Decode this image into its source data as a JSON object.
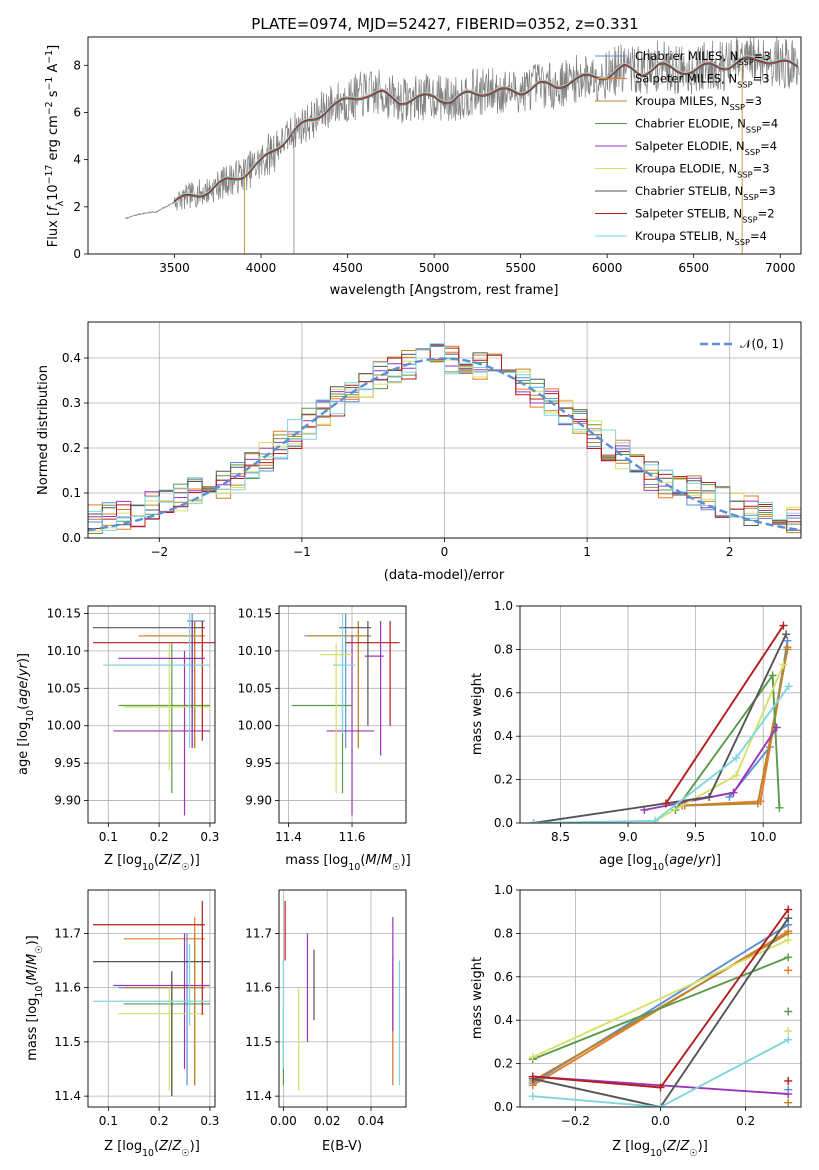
{
  "figure_title": "PLATE=0974, MJD=52427, FIBERID=0352, z=0.331",
  "colors": {
    "chabrier_miles": "#5b8fd6",
    "salpeter_miles": "#e97a2b",
    "kroupa_miles": "#b8862a",
    "chabrier_elodie": "#5a9a4a",
    "salpeter_elodie": "#9a36b9",
    "kroupa_elodie": "#d7e06a",
    "chabrier_stelib": "#555555",
    "salpeter_stelib": "#b51c1c",
    "kroupa_stelib": "#7fd6dc",
    "data": "#808080",
    "normal": "#5b8fd6",
    "grid": "#b0b0b0"
  },
  "chart_data": [
    {
      "id": "spectrum",
      "type": "line",
      "title": "PLATE=0974, MJD=52427, FIBERID=0352, z=0.331",
      "xlabel": "wavelength [Angstrom, rest frame]",
      "ylabel": "Flux [f_λ10^-17 erg cm^-2 s^-1 A^-1]",
      "xlim": [
        3000,
        7120
      ],
      "ylim": [
        0,
        9.2
      ],
      "xticks": [
        "3500",
        "4000",
        "4500",
        "5000",
        "5500",
        "6000",
        "6500",
        "7000"
      ],
      "yticks": [
        "0",
        "2",
        "4",
        "6",
        "8"
      ],
      "grid": false,
      "legend": "top-right",
      "legend_entries": [
        "Chabrier MILES, N_SSP=3",
        "Salpeter MILES, N_SSP=3",
        "Kroupa MILES, N_SSP=3",
        "Chabrier ELODIE, N_SSP=4",
        "Salpeter ELODIE, N_SSP=4",
        "Kroupa ELODIE, N_SSP=3",
        "Chabrier STELIB, N_SSP=3",
        "Salpeter STELIB, N_SSP=2",
        "Kroupa STELIB, N_SSP=4"
      ],
      "data_range": [
        3215,
        7110
      ],
      "continuum": {
        "x": [
          3215,
          3300,
          3400,
          3500,
          3600,
          3700,
          3800,
          3900,
          4000,
          4100,
          4200,
          4300,
          4400,
          4500,
          4600,
          4700,
          4800,
          4900,
          5000,
          5100,
          5200,
          5300,
          5400,
          5500,
          5600,
          5700,
          5800,
          5900,
          6000,
          6100,
          6200,
          6300,
          6400,
          6500,
          6600,
          6700,
          6800,
          6900,
          7000,
          7110
        ],
        "y": [
          1.5,
          1.7,
          1.8,
          2.2,
          2.5,
          2.7,
          3.1,
          3.4,
          3.9,
          4.6,
          5.3,
          5.7,
          6.3,
          6.5,
          6.8,
          6.8,
          6.5,
          6.6,
          6.7,
          6.5,
          6.8,
          6.9,
          6.9,
          6.9,
          7.2,
          7.1,
          7.4,
          7.5,
          7.6,
          7.9,
          7.7,
          8.0,
          7.8,
          7.8,
          8.0,
          8.0,
          8.2,
          8.3,
          8.1,
          8.0
        ]
      }
    },
    {
      "id": "residuals",
      "type": "histogram",
      "xlabel": "(data-model)/error",
      "ylabel": "Normed distribution",
      "xlim": [
        -2.5,
        2.5
      ],
      "ylim": [
        0,
        0.48
      ],
      "xticks": [
        "−2",
        "−1",
        "0",
        "1",
        "2"
      ],
      "yticks": [
        "0.0",
        "0.1",
        "0.2",
        "0.3",
        "0.4"
      ],
      "grid": true,
      "legend": "top-right",
      "legend_entries": [
        "𝒩(0, 1)"
      ],
      "bin_width": 0.1
    },
    {
      "id": "age_vs_Z",
      "type": "errorbar",
      "xlabel": "Z [log10(Z/Z☉)]",
      "ylabel": "age [log10(age/yr)]",
      "xlim": [
        0.06,
        0.31
      ],
      "ylim": [
        9.87,
        10.16
      ],
      "xticks": [
        "0.1",
        "0.2",
        "0.3"
      ],
      "yticks": [
        "9.90",
        "9.95",
        "10.00",
        "10.05",
        "10.10",
        "10.15"
      ],
      "grid": true,
      "points": [
        {
          "model": "chabrier_miles",
          "x": 0.265,
          "xerr": [
            0.255,
            0.29
          ],
          "y": 10.14,
          "yerr": [
            9.97,
            10.15
          ]
        },
        {
          "model": "salpeter_miles",
          "x": 0.27,
          "xerr": [
            0.16,
            0.29
          ],
          "y": 10.12,
          "yerr": [
            9.97,
            10.14
          ]
        },
        {
          "model": "kroupa_miles",
          "x": 0.27,
          "xerr": [
            0.17,
            0.29
          ],
          "y": 10.12,
          "yerr": [
            9.97,
            10.14
          ]
        },
        {
          "model": "chabrier_elodie",
          "x": 0.225,
          "xerr": [
            0.12,
            0.3
          ],
          "y": 10.027,
          "yerr": [
            9.91,
            10.11
          ]
        },
        {
          "model": "salpeter_elodie",
          "x": 0.25,
          "xerr": [
            0.11,
            0.3
          ],
          "y": 9.993,
          "yerr": [
            9.88,
            10.1
          ]
        },
        {
          "model": "kroupa_elodie",
          "x": 0.22,
          "xerr": [
            0.13,
            0.3
          ],
          "y": 10.025,
          "yerr": [
            9.94,
            10.11
          ]
        },
        {
          "model": "chabrier_stelib",
          "x": 0.265,
          "xerr": [
            0.07,
            0.29
          ],
          "y": 10.131,
          "yerr": [
            10.0,
            10.14
          ]
        },
        {
          "model": "salpeter_stelib",
          "x": 0.285,
          "xerr": [
            0.07,
            0.31
          ],
          "y": 10.111,
          "yerr": [
            9.98,
            10.14
          ]
        },
        {
          "model": "kroupa_stelib",
          "x": 0.26,
          "xerr": [
            0.09,
            0.3
          ],
          "y": 10.081,
          "yerr": [
            9.97,
            10.15
          ]
        },
        {
          "model": "salpeter_elodie",
          "x": 0.265,
          "xerr": [
            0.12,
            0.29
          ],
          "y": 10.09,
          "yerr": [
            9.97,
            10.14
          ]
        }
      ]
    },
    {
      "id": "age_vs_mass",
      "type": "errorbar",
      "xlabel": "mass [log10(M/M☉)]",
      "ylabel": "",
      "xlim": [
        11.37,
        11.77
      ],
      "ylim": [
        9.87,
        10.16
      ],
      "xticks": [
        "11.4",
        "11.6"
      ],
      "yticks": [
        "9.90",
        "9.95",
        "10.00",
        "10.05",
        "10.10",
        "10.15"
      ],
      "grid": true,
      "points": [
        {
          "model": "chabrier_miles",
          "x": 11.58,
          "xerr": [
            11.45,
            11.63
          ],
          "y": 10.12,
          "yerr": [
            9.97,
            10.15
          ]
        },
        {
          "model": "salpeter_miles",
          "x": 11.62,
          "xerr": [
            11.46,
            11.66
          ],
          "y": 10.12,
          "yerr": [
            9.97,
            10.14
          ]
        },
        {
          "model": "kroupa_miles",
          "x": 11.62,
          "xerr": [
            11.46,
            11.66
          ],
          "y": 10.12,
          "yerr": [
            9.97,
            10.14
          ]
        },
        {
          "model": "chabrier_elodie",
          "x": 11.57,
          "xerr": [
            11.41,
            11.6
          ],
          "y": 10.027,
          "yerr": [
            9.91,
            10.11
          ]
        },
        {
          "model": "salpeter_elodie",
          "x": 11.6,
          "xerr": [
            11.52,
            11.67
          ],
          "y": 9.993,
          "yerr": [
            9.88,
            10.12
          ]
        },
        {
          "model": "kroupa_elodie",
          "x": 11.55,
          "xerr": [
            11.5,
            11.6
          ],
          "y": 10.095,
          "yerr": [
            9.91,
            10.11
          ]
        },
        {
          "model": "chabrier_stelib",
          "x": 11.65,
          "xerr": [
            11.56,
            11.66
          ],
          "y": 10.131,
          "yerr": [
            10.0,
            10.14
          ]
        },
        {
          "model": "salpeter_stelib",
          "x": 11.72,
          "xerr": [
            11.58,
            11.75
          ],
          "y": 10.111,
          "yerr": [
            10.0,
            10.14
          ]
        },
        {
          "model": "kroupa_stelib",
          "x": 11.57,
          "xerr": [
            11.54,
            11.61
          ],
          "y": 10.081,
          "yerr": [
            9.99,
            10.15
          ]
        },
        {
          "model": "salpeter_elodie",
          "x": 11.69,
          "xerr": [
            11.64,
            11.7
          ],
          "y": 10.093,
          "yerr": [
            9.96,
            10.14
          ]
        }
      ]
    },
    {
      "id": "weight_vs_age",
      "type": "line",
      "xlabel": "age [log10(age/yr)]",
      "ylabel": "mass weight",
      "xlim": [
        8.2,
        10.28
      ],
      "ylim": [
        0,
        1.0
      ],
      "xticks": [
        "8.5",
        "9.0",
        "9.5",
        "10.0"
      ],
      "yticks": [
        "0.0",
        "0.2",
        "0.4",
        "0.6",
        "0.8",
        "1.0"
      ],
      "grid": true,
      "series": [
        {
          "model": "chabrier_miles",
          "x": [
            9.75,
            10.05,
            10.18
          ],
          "y": [
            0.12,
            0.35,
            0.84
          ]
        },
        {
          "model": "salpeter_miles",
          "x": [
            9.4,
            9.98,
            10.18
          ],
          "y": [
            0.08,
            0.1,
            0.81
          ]
        },
        {
          "model": "kroupa_miles",
          "x": [
            9.42,
            9.96,
            10.18
          ],
          "y": [
            0.08,
            0.09,
            0.8
          ]
        },
        {
          "model": "chabrier_elodie",
          "x": [
            9.35,
            10.07,
            10.12
          ],
          "y": [
            0.06,
            0.68,
            0.07
          ]
        },
        {
          "model": "salpeter_elodie",
          "x": [
            9.12,
            9.78,
            10.1
          ],
          "y": [
            0.06,
            0.14,
            0.44
          ]
        },
        {
          "model": "kroupa_elodie",
          "x": [
            9.2,
            9.8,
            10.15
          ],
          "y": [
            0.01,
            0.22,
            0.73
          ]
        },
        {
          "model": "chabrier_stelib",
          "x": [
            8.3,
            9.6,
            10.17
          ],
          "y": [
            0.0,
            0.12,
            0.87
          ]
        },
        {
          "model": "salpeter_stelib",
          "x": [
            9.28,
            10.15
          ],
          "y": [
            0.09,
            0.91
          ]
        },
        {
          "model": "kroupa_stelib",
          "x": [
            8.3,
            9.2,
            9.8,
            10.19
          ],
          "y": [
            0.0,
            0.01,
            0.3,
            0.63
          ]
        }
      ]
    },
    {
      "id": "mass_vs_Z",
      "type": "errorbar",
      "xlabel": "Z [log10(Z/Z☉)]",
      "ylabel": "mass [log10(M/M☉)]",
      "xlim": [
        0.06,
        0.31
      ],
      "ylim": [
        11.38,
        11.78
      ],
      "xticks": [
        "0.1",
        "0.2",
        "0.3"
      ],
      "yticks": [
        "11.4",
        "11.5",
        "11.6",
        "11.7"
      ],
      "grid": true,
      "points": [
        {
          "model": "chabrier_miles",
          "x": 0.255,
          "xerr": [
            0.12,
            0.29
          ],
          "y": 11.6,
          "yerr": [
            11.42,
            11.7
          ]
        },
        {
          "model": "salpeter_miles",
          "x": 0.27,
          "xerr": [
            0.13,
            0.29
          ],
          "y": 11.69,
          "yerr": [
            11.42,
            11.73
          ]
        },
        {
          "model": "kroupa_miles",
          "x": 0.27,
          "xerr": [
            0.13,
            0.29
          ],
          "y": 11.6,
          "yerr": [
            11.42,
            11.7
          ]
        },
        {
          "model": "chabrier_elodie",
          "x": 0.225,
          "xerr": [
            0.13,
            0.3
          ],
          "y": 11.57,
          "yerr": [
            11.4,
            11.63
          ]
        },
        {
          "model": "salpeter_elodie",
          "x": 0.25,
          "xerr": [
            0.11,
            0.3
          ],
          "y": 11.604,
          "yerr": [
            11.45,
            11.7
          ]
        },
        {
          "model": "kroupa_elodie",
          "x": 0.22,
          "xerr": [
            0.12,
            0.29
          ],
          "y": 11.552,
          "yerr": [
            11.41,
            11.6
          ]
        },
        {
          "model": "chabrier_stelib",
          "x": 0.225,
          "xerr": [
            0.07,
            0.3
          ],
          "y": 11.648,
          "yerr": [
            11.4,
            11.63
          ]
        },
        {
          "model": "salpeter_stelib",
          "x": 0.285,
          "xerr": [
            0.07,
            0.29
          ],
          "y": 11.716,
          "yerr": [
            11.55,
            11.76
          ]
        },
        {
          "model": "kroupa_stelib",
          "x": 0.26,
          "xerr": [
            0.07,
            0.3
          ],
          "y": 11.575,
          "yerr": [
            11.53,
            11.68
          ]
        }
      ]
    },
    {
      "id": "mass_vs_ebv",
      "type": "errorbar",
      "xlabel": "E(B-V)",
      "ylabel": "",
      "xlim": [
        -0.002,
        0.056
      ],
      "ylim": [
        11.38,
        11.78
      ],
      "xticks": [
        "0.00",
        "0.02",
        "0.04"
      ],
      "yticks": [
        "11.4",
        "11.5",
        "11.6",
        "11.7"
      ],
      "grid": true,
      "points": [
        {
          "model": "chabrier_miles",
          "x": 0.05,
          "y": 11.6,
          "yerr": [
            11.42,
            11.66
          ]
        },
        {
          "model": "salpeter_miles",
          "x": 0.05,
          "y": 11.52,
          "yerr": [
            11.42,
            11.63
          ]
        },
        {
          "model": "chabrier_elodie",
          "x": 0.0,
          "y": 11.49,
          "yerr": [
            11.42,
            11.56
          ]
        },
        {
          "model": "salpeter_elodie",
          "x": 0.011,
          "y": 11.6,
          "yerr": [
            11.5,
            11.7
          ]
        },
        {
          "model": "kroupa_elodie",
          "x": 0.007,
          "y": 11.49,
          "yerr": [
            11.41,
            11.6
          ]
        },
        {
          "model": "chabrier_stelib",
          "x": 0.014,
          "y": 11.6,
          "yerr": [
            11.54,
            11.67
          ]
        },
        {
          "model": "salpeter_stelib",
          "x": 0.0008,
          "y": 11.7,
          "yerr": [
            11.65,
            11.76
          ]
        },
        {
          "model": "kroupa_stelib",
          "x": 0.053,
          "y": 11.55,
          "yerr": [
            11.42,
            11.65
          ]
        },
        {
          "model": "kroupa_stelib",
          "x": 0.0,
          "y": 11.56,
          "yerr": [
            11.45,
            11.65
          ]
        },
        {
          "model": "salpeter_elodie",
          "x": 0.05,
          "y": 11.62,
          "yerr": [
            11.52,
            11.73
          ]
        }
      ]
    },
    {
      "id": "weight_vs_Z",
      "type": "line",
      "xlabel": "Z [log10(Z/Z☉)]",
      "ylabel": "mass weight",
      "xlim": [
        -0.33,
        0.33
      ],
      "ylim": [
        0,
        1.0
      ],
      "xticks": [
        "−0.2",
        "0.0",
        "0.2"
      ],
      "yticks": [
        "0.0",
        "0.2",
        "0.4",
        "0.6",
        "0.8",
        "1.0"
      ],
      "grid": true,
      "series": [
        {
          "model": "chabrier_miles",
          "x": [
            -0.3,
            0.3
          ],
          "y": [
            0.11,
            0.84
          ]
        },
        {
          "model": "salpeter_miles",
          "x": [
            -0.3,
            0.3
          ],
          "y": [
            0.1,
            0.81
          ]
        },
        {
          "model": "kroupa_miles",
          "x": [
            -0.3,
            0.3
          ],
          "y": [
            0.12,
            0.8
          ]
        },
        {
          "model": "chabrier_elodie",
          "x": [
            -0.3,
            0.3
          ],
          "y": [
            0.22,
            0.69
          ]
        },
        {
          "model": "salpeter_elodie",
          "x": [
            -0.3,
            0.3
          ],
          "y": [
            0.14,
            0.06
          ]
        },
        {
          "model": "kroupa_elodie",
          "x": [
            -0.3,
            0.3
          ],
          "y": [
            0.23,
            0.77
          ]
        },
        {
          "model": "chabrier_stelib",
          "x": [
            -0.3,
            0.0,
            0.3
          ],
          "y": [
            0.13,
            0.0,
            0.87
          ]
        },
        {
          "model": "salpeter_stelib",
          "x": [
            -0.3,
            0.0,
            0.3
          ],
          "y": [
            0.14,
            0.09,
            0.91
          ]
        },
        {
          "model": "kroupa_stelib",
          "x": [
            -0.3,
            0.0,
            0.3
          ],
          "y": [
            0.05,
            0.0,
            0.31
          ]
        }
      ],
      "right_edge_markers": {
        "x": 0.3,
        "y": [
          0.63,
          0.44,
          0.35,
          0.12,
          0.08,
          0.02
        ]
      }
    }
  ]
}
